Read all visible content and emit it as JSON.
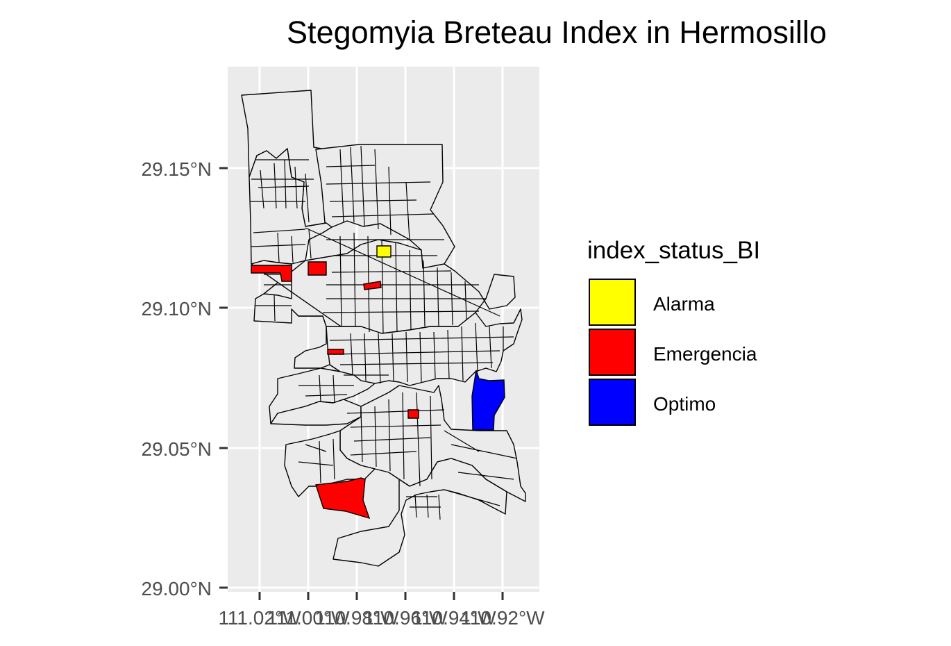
{
  "title": "Stegomyia Breteau Index in Hermosillo",
  "axes": {
    "y_ticks": [
      "29.00°N",
      "29.05°N",
      "29.10°N",
      "29.15°N"
    ],
    "x_ticks": [
      "111.02°W",
      "111.00°W",
      "110.98°W",
      "110.96°W",
      "110.94°W",
      "110.92°W"
    ]
  },
  "legend": {
    "title": "index_status_BI",
    "items": [
      {
        "label": "Alarma",
        "color": "#ffff00"
      },
      {
        "label": "Emergencia",
        "color": "#ff0000"
      },
      {
        "label": "Optimo",
        "color": "#0000ff"
      }
    ]
  },
  "colors": {
    "panel_background": "#ebebeb",
    "gridline": "#ffffff",
    "default_fill": "#ebebeb"
  }
}
